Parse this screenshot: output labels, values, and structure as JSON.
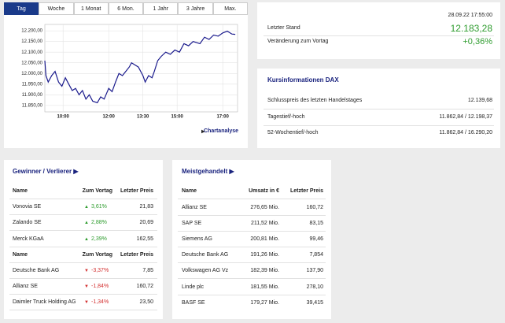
{
  "tabs": [
    "Tag",
    "Woche",
    "1 Monat",
    "6 Mon.",
    "1 Jahr",
    "3 Jahre",
    "Max."
  ],
  "chart_data": {
    "type": "line",
    "x": [
      9.2,
      9.25,
      9.35,
      9.5,
      9.65,
      9.8,
      9.95,
      10.1,
      10.25,
      10.4,
      10.55,
      10.7,
      10.85,
      11.0,
      11.15,
      11.3,
      11.5,
      11.65,
      11.8,
      12.0,
      12.15,
      12.3,
      12.45,
      12.6,
      12.75,
      12.9,
      13.0,
      13.15,
      13.3,
      13.5,
      13.6,
      13.75,
      13.9,
      14.0,
      14.15,
      14.3,
      14.5,
      14.7,
      14.9,
      15.1,
      15.3,
      15.5,
      15.7,
      16.0,
      16.2,
      16.4,
      16.6,
      16.8,
      17.0,
      17.2,
      17.4,
      17.55
    ],
    "series": [
      {
        "color": "#1a1a8c",
        "values": [
          12060,
          11990,
          11960,
          11990,
          12010,
          11960,
          11940,
          11980,
          11950,
          11920,
          11930,
          11900,
          11920,
          11880,
          11900,
          11870,
          11862.84,
          11890,
          11880,
          11930,
          11915,
          11960,
          12000,
          11990,
          12010,
          12030,
          12050,
          12040,
          12030,
          11990,
          11960,
          11990,
          11980,
          12010,
          12060,
          12080,
          12100,
          12090,
          12110,
          12100,
          12140,
          12130,
          12150,
          12140,
          12170,
          12160,
          12180,
          12175,
          12190,
          12198.37,
          12185,
          12183.28
        ]
      }
    ],
    "xlim": [
      9.2,
      17.65
    ],
    "ylim": [
      11820,
      12230
    ],
    "xticks": [
      {
        "value": 10,
        "label": "10:00"
      },
      {
        "value": 12,
        "label": "12:00"
      },
      {
        "value": 13.5,
        "label": "13:30"
      },
      {
        "value": 15,
        "label": "15:00"
      },
      {
        "value": 17,
        "label": "17:00"
      }
    ],
    "yticks": [
      {
        "value": 11850,
        "label": "11.850,00"
      },
      {
        "value": 11900,
        "label": "11.900,00"
      },
      {
        "value": 11950,
        "label": "11.950,00"
      },
      {
        "value": 12000,
        "label": "12.000,00"
      },
      {
        "value": 12050,
        "label": "12.050,00"
      },
      {
        "value": 12100,
        "label": "12.100,00"
      },
      {
        "value": 12150,
        "label": "12.150,00"
      },
      {
        "value": 12200,
        "label": "12.200,00"
      }
    ],
    "grid": true
  },
  "chart_link": "Chartanalyse",
  "quote": {
    "timestamp": "28.09.22 17:55:00",
    "last_label": "Letzter Stand",
    "last": "12.183,28",
    "change_label": "Veränderung zum Vortag",
    "change": "+0,36%"
  },
  "info": {
    "title": "Kursinformationen DAX",
    "rows": [
      [
        "Schlusspreis des letzten Handelstages",
        "12.139,68"
      ],
      [
        "Tagestief/-hoch",
        "11.862,84 / 12.198,37"
      ],
      [
        "52-Wochentief/-hoch",
        "11.862,84 / 16.290,20"
      ]
    ]
  },
  "movers": {
    "title": "Gewinner / Verlierer ▶",
    "groups": [
      {
        "header": [
          "Name",
          "Zum Vortag",
          "Letzter Preis"
        ],
        "rows": [
          [
            "Vonovia SE",
            "3,61%",
            "21,83"
          ],
          [
            "Zalando SE",
            "2,88%",
            "20,69"
          ],
          [
            "Merck KGaA",
            "2,39%",
            "162,55"
          ]
        ]
      },
      {
        "header": [
          "Name",
          "Zum Vortag",
          "Letzter Preis"
        ],
        "rows": [
          [
            "Deutsche Bank AG",
            "-3,37%",
            "7,85"
          ],
          [
            "Allianz SE",
            "-1,84%",
            "160,72"
          ],
          [
            "Daimler Truck Holding AG",
            "-1,34%",
            "23,50"
          ]
        ]
      }
    ]
  },
  "active": {
    "title": "Meistgehandelt ▶",
    "header": [
      "Name",
      "Umsatz in €",
      "Letzter Preis"
    ],
    "rows": [
      [
        "Allianz SE",
        "276,65 Mio.",
        "160,72"
      ],
      [
        "SAP SE",
        "211,52 Mio.",
        "83,15"
      ],
      [
        "Siemens AG",
        "200,81 Mio.",
        "99,46"
      ],
      [
        "Deutsche Bank AG",
        "191,26 Mio.",
        "7,854"
      ],
      [
        "Volkswagen AG Vz",
        "182,39 Mio.",
        "137,90"
      ],
      [
        "Linde plc",
        "181,55 Mio.",
        "278,10"
      ],
      [
        "BASF SE",
        "179,27 Mio.",
        "39,415"
      ]
    ]
  }
}
